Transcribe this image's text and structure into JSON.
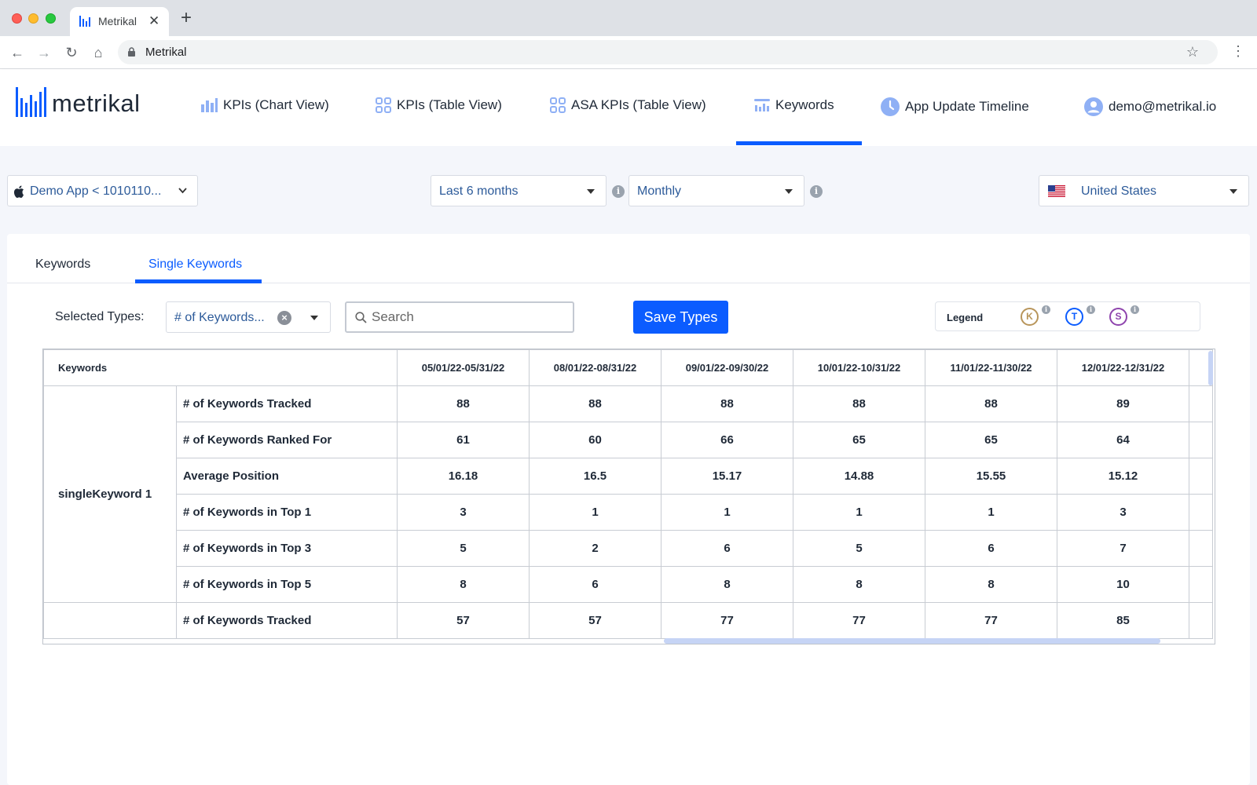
{
  "browser": {
    "tab_title": "Metrikal",
    "new_tab": "+",
    "close": "✕",
    "url": "Metrikal"
  },
  "header": {
    "logo_text": "metrikal",
    "nav": [
      {
        "label": "KPIs (Chart View)",
        "icon": "bar-chart-icon"
      },
      {
        "label": "KPIs (Table View)",
        "icon": "grid-icon"
      },
      {
        "label": "ASA KPIs (Table View)",
        "icon": "grid-icon"
      },
      {
        "label": "Keywords",
        "icon": "keywords-icon",
        "active": true
      },
      {
        "label": "App Update Timeline",
        "icon": "clock-icon"
      },
      {
        "label": "demo@metrikal.io",
        "icon": "user-icon"
      }
    ]
  },
  "filters": {
    "app": "Demo App < 1010110...",
    "period": "Last 6 months",
    "granularity": "Monthly",
    "country": "United States"
  },
  "tabs": [
    {
      "label": "Keywords",
      "active": false
    },
    {
      "label": "Single Keywords",
      "active": true
    }
  ],
  "controls": {
    "selected_types_label": "Selected Types:",
    "selected_types_value": "# of Keywords...",
    "search_placeholder": "Search",
    "save_button": "Save Types",
    "legend_title": "Legend",
    "legend_badges": [
      {
        "letter": "K",
        "color": "#b8955a"
      },
      {
        "letter": "T",
        "color": "#0b5cff"
      },
      {
        "letter": "S",
        "color": "#8e44ad"
      }
    ]
  },
  "accent_color": "#0b5cff",
  "table": {
    "header_keyword": "Keywords",
    "columns": [
      "05/01/22-05/31/22",
      "08/01/22-08/31/22",
      "09/01/22-09/30/22",
      "10/01/22-10/31/22",
      "11/01/22-11/30/22",
      "12/01/22-12/31/22"
    ],
    "groups": [
      {
        "keyword": "singleKeyword 1",
        "rows": [
          {
            "metric": "# of Keywords Tracked",
            "values": [
              "88",
              "88",
              "88",
              "88",
              "88",
              "89"
            ]
          },
          {
            "metric": "# of Keywords Ranked For",
            "values": [
              "61",
              "60",
              "66",
              "65",
              "65",
              "64"
            ]
          },
          {
            "metric": "Average Position",
            "values": [
              "16.18",
              "16.5",
              "15.17",
              "14.88",
              "15.55",
              "15.12"
            ]
          },
          {
            "metric": "# of Keywords in Top 1",
            "values": [
              "3",
              "1",
              "1",
              "1",
              "1",
              "3"
            ]
          },
          {
            "metric": "# of Keywords in Top 3",
            "values": [
              "5",
              "2",
              "6",
              "5",
              "6",
              "7"
            ]
          },
          {
            "metric": "# of Keywords in Top 5",
            "values": [
              "8",
              "6",
              "8",
              "8",
              "8",
              "10"
            ]
          }
        ]
      },
      {
        "keyword": "",
        "rows": [
          {
            "metric": "# of Keywords Tracked",
            "values": [
              "57",
              "57",
              "77",
              "77",
              "77",
              "85"
            ]
          }
        ]
      }
    ]
  }
}
